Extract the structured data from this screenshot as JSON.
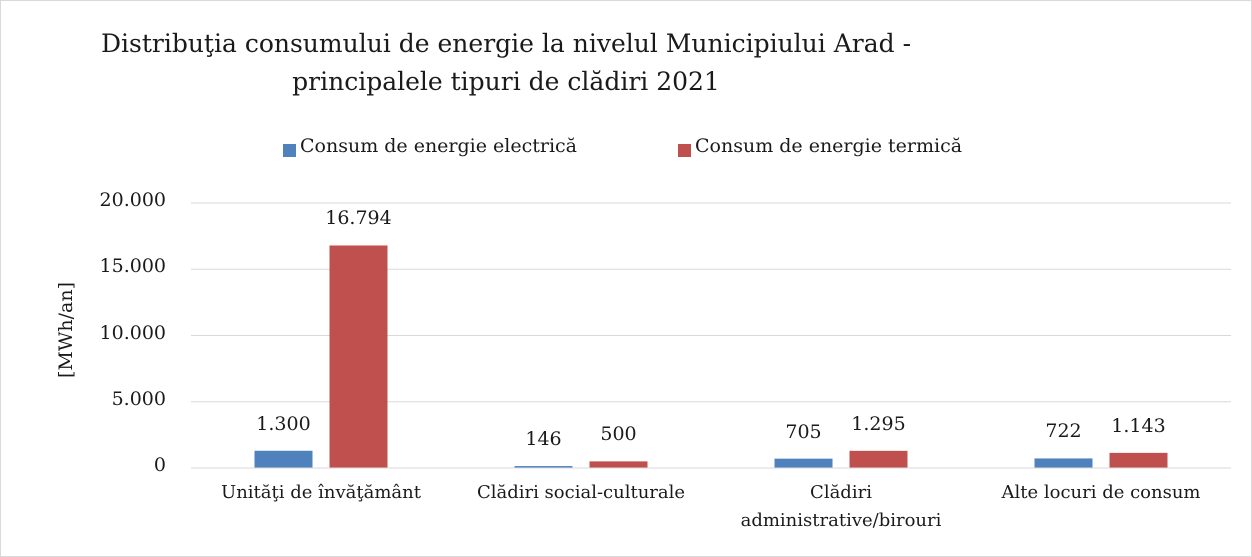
{
  "chart_data": {
    "type": "bar",
    "title": [
      "Distribuţia consumului de energie la nivelul Municipiului Arad -",
      "principalele tipuri de clădiri 2021"
    ],
    "y_label": "[MWh/an]",
    "categories": [
      "Unităţi de învăţământ",
      "Clădiri social-culturale",
      "Clădiri administrative/birouri",
      "Alte locuri de consum"
    ],
    "series": [
      {
        "name": "Consum de energie electrică",
        "color": "#4f81bd",
        "values": [
          1300,
          146,
          705,
          722
        ],
        "value_labels": [
          "1.300",
          "146",
          "705",
          "722"
        ]
      },
      {
        "name": "Consum de energie termică",
        "color": "#c0504d",
        "values": [
          16794,
          500,
          1295,
          1143
        ],
        "value_labels": [
          "16.794",
          "500",
          "1.295",
          "1.143"
        ]
      }
    ],
    "ylim": [
      0,
      20000
    ],
    "yticks": [
      0,
      {
        "value": 5000,
        "label": "5.000"
      },
      {
        "value": 10000,
        "label": "10.000"
      },
      {
        "value": 15000,
        "label": "15.000"
      },
      {
        "value": 20000,
        "label": "20.000"
      }
    ],
    "grid": true,
    "legend": "top"
  }
}
